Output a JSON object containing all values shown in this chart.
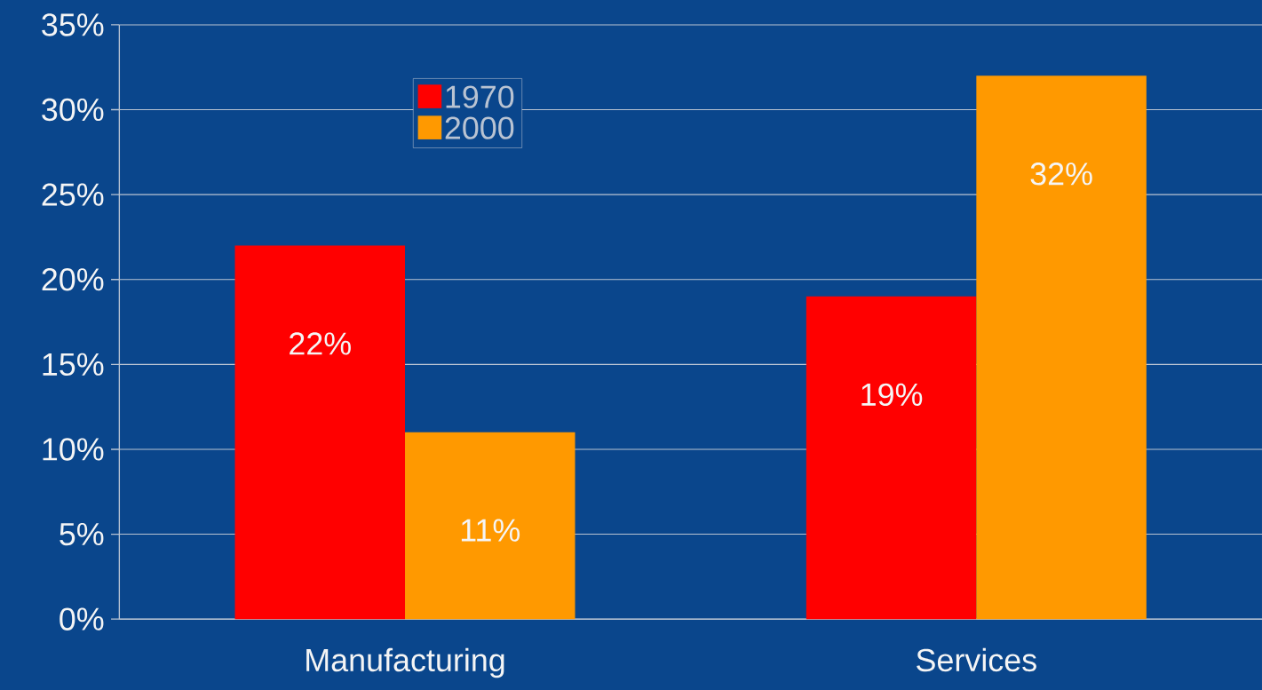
{
  "chart_data": {
    "type": "bar",
    "categories": [
      "Manufacturing",
      "Services"
    ],
    "series": [
      {
        "name": "1970",
        "color": "#ff0000",
        "values": [
          22,
          19
        ],
        "value_labels": [
          "22%",
          "19%"
        ]
      },
      {
        "name": "2000",
        "color": "#ff9900",
        "values": [
          11,
          32
        ],
        "value_labels": [
          "11%",
          "32%"
        ]
      }
    ],
    "ylim": [
      0,
      35
    ],
    "yticks": [
      {
        "value": 0,
        "label": "0%"
      },
      {
        "value": 5,
        "label": "5%"
      },
      {
        "value": 10,
        "label": "10%"
      },
      {
        "value": 15,
        "label": "15%"
      },
      {
        "value": 20,
        "label": "20%"
      },
      {
        "value": 25,
        "label": "25%"
      },
      {
        "value": 30,
        "label": "30%"
      },
      {
        "value": 35,
        "label": "35%"
      }
    ],
    "grid": "y",
    "legend": "top left"
  }
}
